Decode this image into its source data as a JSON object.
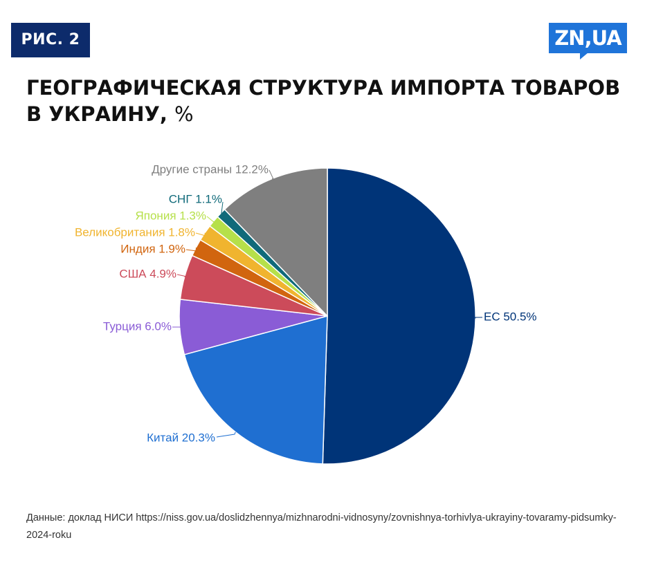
{
  "badge": "РИС. 2",
  "logo": "ZN,UA",
  "title": {
    "main": "ГЕОГРАФИЧЕСКАЯ СТРУКТУРА ИМПОРТА ТОВАРОВ В УКРАИНУ,",
    "unit": "%"
  },
  "source": "Данные: доклад НИСИ https://niss.gov.ua/doslidzhennya/mizhnarodni-vidnosyny/zovnishnya-torhivlya-ukrayiny-tovaramy-pidsumky-2024-roku",
  "chart_data": {
    "type": "pie",
    "title": "ГЕОГРАФИЧЕСКАЯ СТРУКТУРА ИМПОРТА ТОВАРОВ В УКРАИНУ, %",
    "slices": [
      {
        "label": "ЕС",
        "value": 50.5,
        "text": "ЕС 50.5%",
        "color": "#003478"
      },
      {
        "label": "Китай",
        "value": 20.3,
        "text": "Китай 20.3%",
        "color": "#1f6fd1"
      },
      {
        "label": "Турция",
        "value": 6.0,
        "text": "Турция 6.0%",
        "color": "#8a5cd6"
      },
      {
        "label": "США",
        "value": 4.9,
        "text": "США 4.9%",
        "color": "#cc4b5a"
      },
      {
        "label": "Индия",
        "value": 1.9,
        "text": "Индия 1.9%",
        "color": "#d1650f"
      },
      {
        "label": "Великобритания",
        "value": 1.8,
        "text": "Великобритания 1.8%",
        "color": "#f0b42f"
      },
      {
        "label": "Япония",
        "value": 1.3,
        "text": "Япония 1.3%",
        "color": "#b6e04a"
      },
      {
        "label": "СНГ",
        "value": 1.1,
        "text": "СНГ 1.1%",
        "color": "#106a7a"
      },
      {
        "label": "Другие страны",
        "value": 12.2,
        "text": "Другие страны 12.2%",
        "color": "#7f7f7f"
      }
    ]
  }
}
